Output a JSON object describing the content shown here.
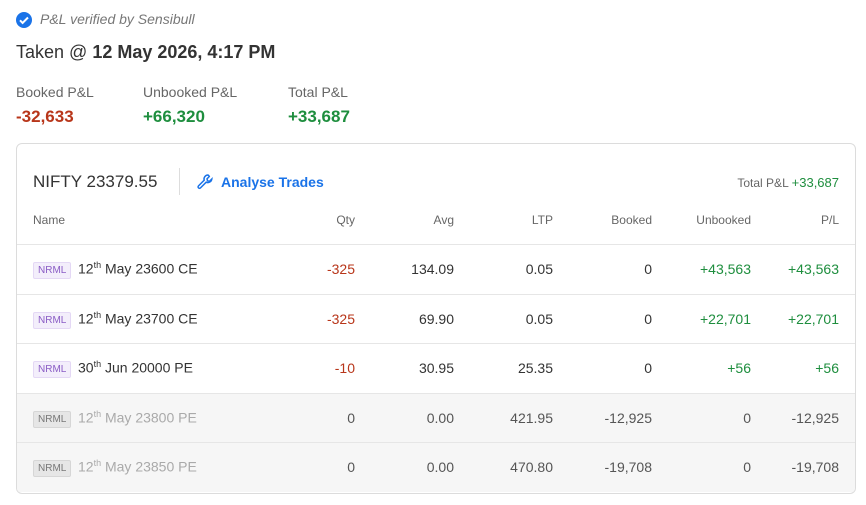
{
  "header": {
    "verified": "P&L verified by Sensibull",
    "taken_prefix": "Taken @ ",
    "taken_time": "12 May 2026, 4:17 PM"
  },
  "summary": [
    {
      "label": "Booked P&L",
      "value": "-32,633"
    },
    {
      "label": "Unbooked P&L",
      "value": "+66,320"
    },
    {
      "label": "Total P&L",
      "value": "+33,687"
    }
  ],
  "card": {
    "instrument": "NIFTY 23379.55",
    "action": "Analyse Trades",
    "total_label": "Total P&L",
    "total_value": "+33,687",
    "columns": [
      "Name",
      "Qty",
      "Avg",
      "LTP",
      "Booked",
      "Unbooked",
      "P/L"
    ],
    "rows": [
      {
        "tag": "NRML",
        "day": "12",
        "suffix": "th",
        "rest": " May 23600 CE",
        "cells": [
          "-325",
          "134.09",
          "0.05",
          "0",
          "+43,563",
          "+43,563"
        ]
      },
      {
        "tag": "NRML",
        "day": "12",
        "suffix": "th",
        "rest": " May 23700 CE",
        "cells": [
          "-325",
          "69.90",
          "0.05",
          "0",
          "+22,701",
          "+22,701"
        ]
      },
      {
        "tag": "NRML",
        "day": "30",
        "suffix": "th",
        "rest": " Jun 20000 PE",
        "cells": [
          "-10",
          "30.95",
          "25.35",
          "0",
          "+56",
          "+56"
        ]
      },
      {
        "tag": "NRML",
        "day": "12",
        "suffix": "th",
        "rest": " May 23800 PE",
        "cells": [
          "0",
          "0.00",
          "421.95",
          "-12,925",
          "0",
          "-12,925"
        ]
      },
      {
        "tag": "NRML",
        "day": "12",
        "suffix": "th",
        "rest": " May 23850 PE",
        "cells": [
          "0",
          "0.00",
          "470.80",
          "-19,708",
          "0",
          "-19,708"
        ]
      }
    ]
  }
}
